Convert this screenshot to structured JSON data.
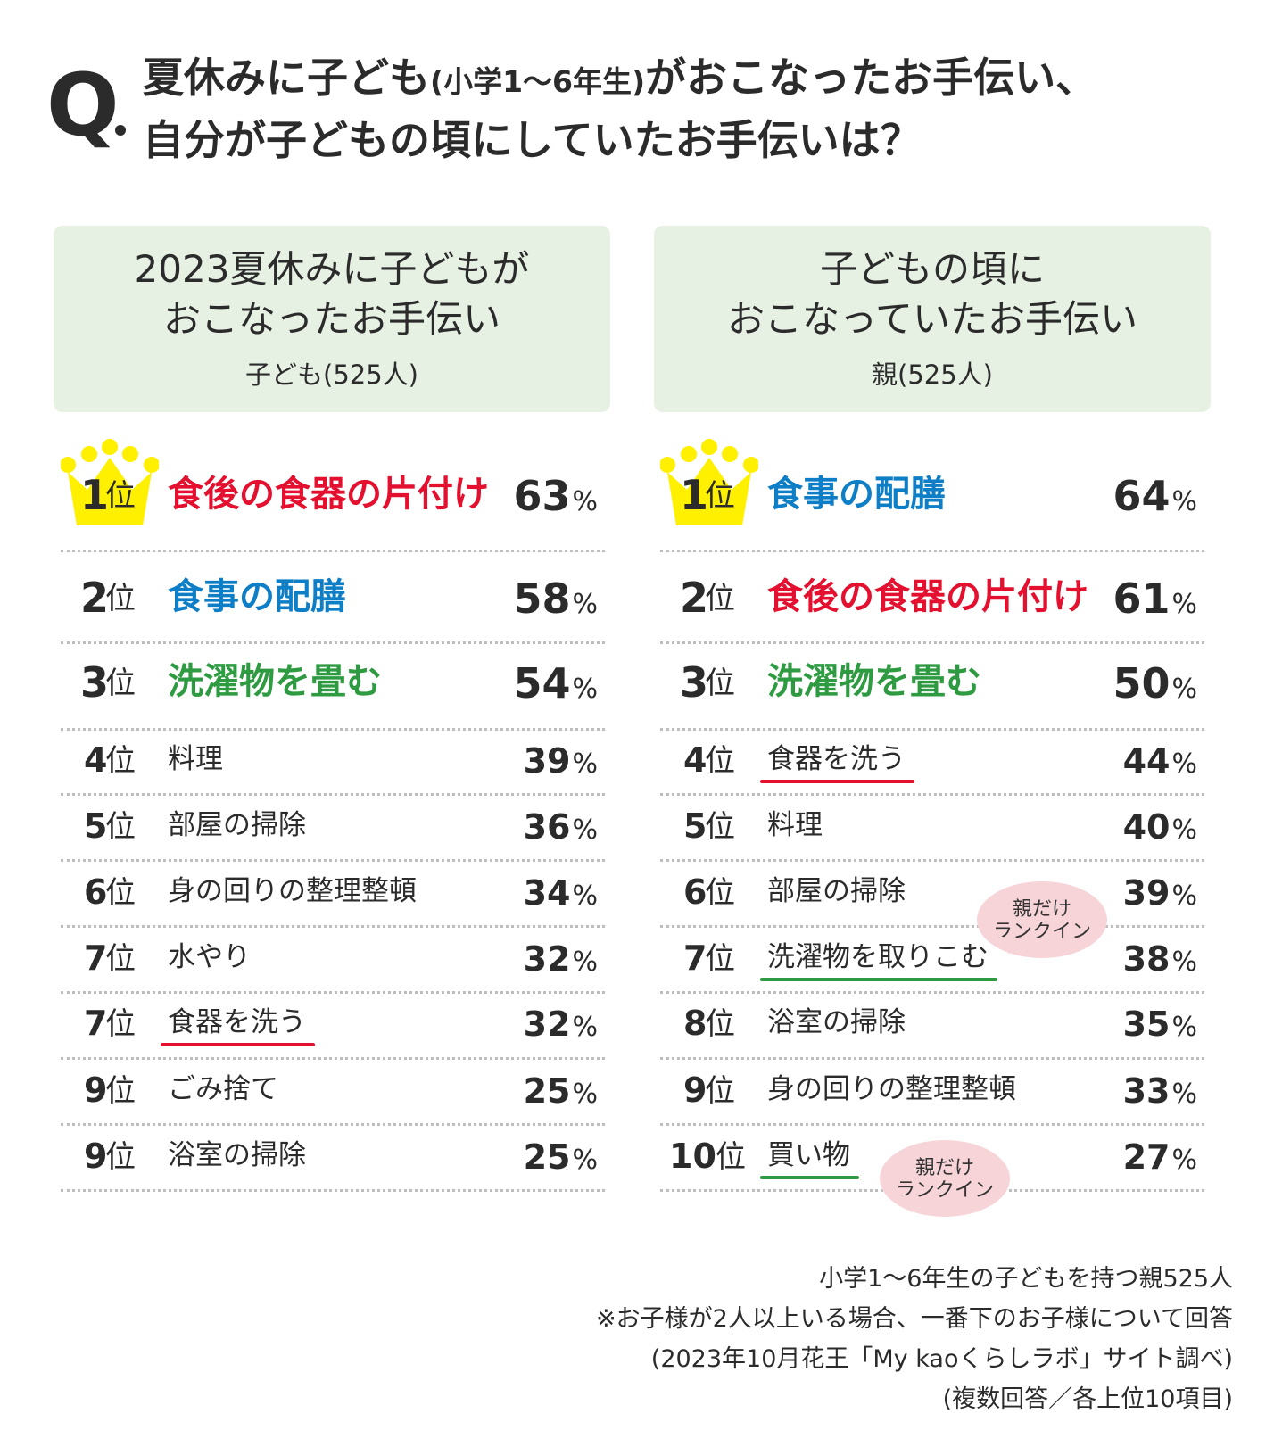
{
  "question": {
    "mark": "Q",
    "line1_a": "夏休みに子ども",
    "line1_b": "(小学1〜6年生)",
    "line1_c": "がおこなったお手伝い、",
    "line2": "自分が子どもの頃にしていたお手伝いは？"
  },
  "colors": {
    "red": "#e4102f",
    "blue": "#0e7fc6",
    "green": "#2e9a41",
    "panel_bg": "#e6f1e4",
    "highlight": "#fff34d",
    "crown": "#fff000",
    "bubble": "#f6d4d8"
  },
  "left_panel": {
    "title1": "2023夏休みに子どもが",
    "title2": "おこなったお手伝い",
    "subtitle": "子ども(525人)"
  },
  "right_panel": {
    "title1": "子どもの頃に",
    "title2": "おこなっていたお手伝い",
    "subtitle": "親(525人)"
  },
  "rank_suffix": "位",
  "percent_sign": "%",
  "bubble_text": {
    "line1": "親だけ",
    "line2": "ランクイン"
  },
  "icons": {
    "crown": "crown-icon"
  },
  "chart_data": [
    {
      "type": "table",
      "title": "2023夏休みに子どもがおこなったお手伝い",
      "subtitle": "子ども(525人)",
      "columns": [
        "rank",
        "task",
        "percent"
      ],
      "rows": [
        {
          "rank": "1",
          "task": "食後の食器の片付け",
          "value": 63,
          "percent": "63",
          "style": "red"
        },
        {
          "rank": "2",
          "task": "食事の配膳",
          "value": 58,
          "percent": "58",
          "style": "blue"
        },
        {
          "rank": "3",
          "task": "洗濯物を畳む",
          "value": 54,
          "percent": "54",
          "style": "green"
        },
        {
          "rank": "4",
          "task": "料理",
          "value": 39,
          "percent": "39",
          "style": "plain"
        },
        {
          "rank": "5",
          "task": "部屋の掃除",
          "value": 36,
          "percent": "36",
          "style": "plain"
        },
        {
          "rank": "6",
          "task": "身の回りの整理整頓",
          "value": 34,
          "percent": "34",
          "style": "plain"
        },
        {
          "rank": "7",
          "task": "水やり",
          "value": 32,
          "percent": "32",
          "style": "plain"
        },
        {
          "rank": "7",
          "task": "食器を洗う",
          "value": 32,
          "percent": "32",
          "style": "plain",
          "underline": "red"
        },
        {
          "rank": "9",
          "task": "ごみ捨て",
          "value": 25,
          "percent": "25",
          "style": "plain"
        },
        {
          "rank": "9",
          "task": "浴室の掃除",
          "value": 25,
          "percent": "25",
          "style": "plain"
        }
      ]
    },
    {
      "type": "table",
      "title": "子どもの頃におこなっていたお手伝い",
      "subtitle": "親(525人)",
      "columns": [
        "rank",
        "task",
        "percent"
      ],
      "rows": [
        {
          "rank": "1",
          "task": "食事の配膳",
          "value": 64,
          "percent": "64",
          "style": "blue"
        },
        {
          "rank": "2",
          "task": "食後の食器の片付け",
          "value": 61,
          "percent": "61",
          "style": "red"
        },
        {
          "rank": "3",
          "task": "洗濯物を畳む",
          "value": 50,
          "percent": "50",
          "style": "green"
        },
        {
          "rank": "4",
          "task": "食器を洗う",
          "value": 44,
          "percent": "44",
          "style": "plain",
          "underline": "red"
        },
        {
          "rank": "5",
          "task": "料理",
          "value": 40,
          "percent": "40",
          "style": "plain"
        },
        {
          "rank": "6",
          "task": "部屋の掃除",
          "value": 39,
          "percent": "39",
          "style": "plain"
        },
        {
          "rank": "7",
          "task": "洗濯物を取りこむ",
          "value": 38,
          "percent": "38",
          "style": "plain",
          "underline": "green",
          "badge": "親だけランクイン"
        },
        {
          "rank": "8",
          "task": "浴室の掃除",
          "value": 35,
          "percent": "35",
          "style": "plain"
        },
        {
          "rank": "9",
          "task": "身の回りの整理整頓",
          "value": 33,
          "percent": "33",
          "style": "plain"
        },
        {
          "rank": "10",
          "task": "買い物",
          "value": 27,
          "percent": "27",
          "style": "plain",
          "underline": "green",
          "badge": "親だけランクイン"
        }
      ]
    }
  ],
  "footnotes": [
    "小学1〜6年生の子どもを持つ親525人",
    "※お子様が2人以上いる場合、一番下のお子様について回答",
    "(2023年10月花王「My kaoくらしラボ」サイト調べ)",
    "(複数回答／各上位10項目)"
  ]
}
